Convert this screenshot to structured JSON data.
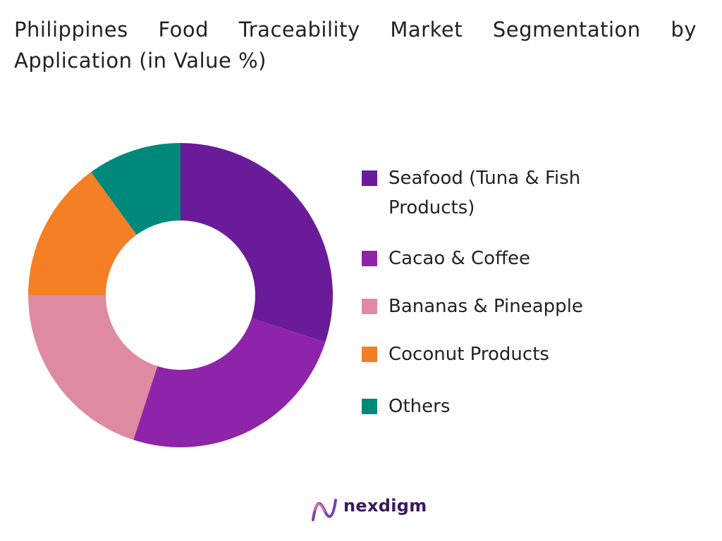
{
  "chart_data": {
    "type": "pie",
    "title": "Philippines Food Traceability Market Segmentation by Application (in Value %)",
    "categories": [
      "Seafood (Tuna & Fish Products)",
      "Cacao & Coffee",
      "Bananas & Pineapple",
      "Coconut Products",
      "Others"
    ],
    "values": [
      30,
      25,
      20,
      15,
      10
    ],
    "colors": [
      "#6a1b9a",
      "#8e24aa",
      "#de8aa0",
      "#f57f25",
      "#00897b"
    ]
  },
  "footer": {
    "brand": "nexdigm"
  }
}
